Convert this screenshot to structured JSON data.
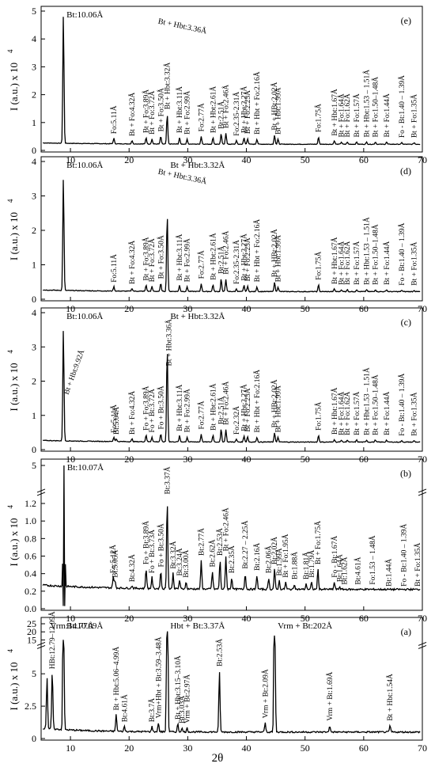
{
  "chart_data": [
    {
      "type": "line",
      "panel": "(e)",
      "xlabel": "",
      "ylabel": "I (a.u.) x 10^4",
      "xlim": [
        5,
        70
      ],
      "ylim": [
        0,
        5
      ],
      "yticks": [
        "0",
        "1",
        "2",
        "3",
        "4",
        "5"
      ],
      "xticks": [
        "10",
        "20",
        "30",
        "40",
        "50",
        "60",
        "70"
      ],
      "peaks": [
        {
          "x": 8.8,
          "y": 4.85,
          "label": "Bt:10.06Å"
        },
        {
          "x": 17.4,
          "y": 0.42,
          "label": "Fo:5.11Å"
        },
        {
          "x": 20.5,
          "y": 0.34,
          "label": "Bt + Fo:4.32Å"
        },
        {
          "x": 22.9,
          "y": 0.45,
          "label": "Bt + Fo:3.89Å"
        },
        {
          "x": 23.9,
          "y": 0.4,
          "label": "Bt + Fo:3.72Å"
        },
        {
          "x": 25.4,
          "y": 0.5,
          "label": "Bt + Fo:3.50Å"
        },
        {
          "x": 26.5,
          "y": 1.3,
          "label": "Bt + Hbt:3.32Å"
        },
        {
          "x": 28.6,
          "y": 0.45,
          "label": "Bt + Hbt:3.11Å"
        },
        {
          "x": 29.9,
          "y": 0.4,
          "label": "Bt + Fo:2.99Å"
        },
        {
          "x": 32.3,
          "y": 0.5,
          "label": "Fo:2.77Å"
        },
        {
          "x": 34.3,
          "y": 0.45,
          "label": "Bt + Hbt:2.61Å"
        },
        {
          "x": 35.7,
          "y": 0.6,
          "label": "Bt:2.51Å"
        },
        {
          "x": 36.5,
          "y": 0.62,
          "label": "Bt + Fo:2.46Å"
        },
        {
          "x": 38.3,
          "y": 0.35,
          "label": "Fo:2.35-2.31Å"
        },
        {
          "x": 39.6,
          "y": 0.45,
          "label": "Bt + Hbt:2.27Å"
        },
        {
          "x": 40.2,
          "y": 0.42,
          "label": "Bt + Fo:2.25Å"
        },
        {
          "x": 41.8,
          "y": 0.4,
          "label": "Bt + Hbt + Fo:2.16Å"
        },
        {
          "x": 44.8,
          "y": 0.55,
          "label": "Bt + HBt:2.02Å"
        },
        {
          "x": 45.4,
          "y": 0.4,
          "label": "Bt + Hbt:1.99Å"
        },
        {
          "x": 52.3,
          "y": 0.48,
          "label": "Fo:1.75Å"
        },
        {
          "x": 55.0,
          "y": 0.35,
          "label": "Bt + Hbt:1.67Å"
        },
        {
          "x": 56.2,
          "y": 0.3,
          "label": "Bt + Fo:1.64Å"
        },
        {
          "x": 57.2,
          "y": 0.3,
          "label": "Bt + Fo:1.62Å"
        },
        {
          "x": 58.8,
          "y": 0.3,
          "label": "Bt + Fo:1.57Å"
        },
        {
          "x": 60.5,
          "y": 0.3,
          "label": "Bt + Hbt:1.53 – 1.51Å"
        },
        {
          "x": 62.0,
          "y": 0.3,
          "label": "Bt + Fo:1.50–1.48Å"
        },
        {
          "x": 63.9,
          "y": 0.3,
          "label": "Bt + Fo:1.44Å"
        },
        {
          "x": 66.5,
          "y": 0.28,
          "label": "Fo - Bt:1.40 – 1.39Å"
        },
        {
          "x": 68.6,
          "y": 0.28,
          "label": "Bt + Fo:1.35Å"
        }
      ],
      "annotation": "Bt + Hbt:3.36Å"
    },
    {
      "type": "line",
      "panel": "(d)",
      "xlabel": "",
      "ylabel": "I (a.u.) x 10^4",
      "xlim": [
        5,
        70
      ],
      "ylim": [
        0,
        4
      ],
      "yticks": [
        "0",
        "1",
        "2",
        "3",
        "4"
      ],
      "xticks": [
        "10",
        "20",
        "30",
        "40",
        "50",
        "60",
        "70"
      ],
      "peaks": [
        {
          "x": 8.8,
          "y": 3.5,
          "label": "Bt:10.06Å"
        },
        {
          "x": 17.4,
          "y": 0.35,
          "label": "Fo:5.11Å"
        },
        {
          "x": 20.5,
          "y": 0.3,
          "label": "Bt + Fo:4.32Å"
        },
        {
          "x": 22.9,
          "y": 0.4,
          "label": "Bt + Fo:3.89Å"
        },
        {
          "x": 23.9,
          "y": 0.36,
          "label": "Bt + Fo:3.72Å"
        },
        {
          "x": 25.4,
          "y": 0.45,
          "label": "Bt + Fo:3.50Å"
        },
        {
          "x": 26.5,
          "y": 2.5,
          "label": "Bt + Hbt:3.32Å"
        },
        {
          "x": 28.6,
          "y": 0.4,
          "label": "Bt + Hbt:3.11Å"
        },
        {
          "x": 29.9,
          "y": 0.36,
          "label": "Bt + Fo:2.99Å"
        },
        {
          "x": 32.3,
          "y": 0.45,
          "label": "Fo:2.77Å"
        },
        {
          "x": 34.3,
          "y": 0.42,
          "label": "Bt + Hbt:2.61Å"
        },
        {
          "x": 35.7,
          "y": 0.6,
          "label": "Bt:2.51Å"
        },
        {
          "x": 36.5,
          "y": 0.58,
          "label": "Bt + Fo:2.46Å"
        },
        {
          "x": 38.3,
          "y": 0.3,
          "label": "Fo:2.35-2.31Å"
        },
        {
          "x": 39.6,
          "y": 0.4,
          "label": "Bt + Hbt:2.27Å"
        },
        {
          "x": 40.2,
          "y": 0.38,
          "label": "Bt + Fo:2.25Å"
        },
        {
          "x": 41.8,
          "y": 0.36,
          "label": "Bt + Hbt + Fo:2.16Å"
        },
        {
          "x": 44.8,
          "y": 0.5,
          "label": "Bt + HBt:2.02Å"
        },
        {
          "x": 45.4,
          "y": 0.36,
          "label": "Bt + Hbt:1.99Å"
        },
        {
          "x": 52.3,
          "y": 0.42,
          "label": "Fo:1.75Å"
        },
        {
          "x": 55.0,
          "y": 0.3,
          "label": "Bt + Hbt:1.67Å"
        },
        {
          "x": 56.2,
          "y": 0.28,
          "label": "Bt + Fo:1.64Å"
        },
        {
          "x": 57.2,
          "y": 0.28,
          "label": "Bt + Fo:1.62Å"
        },
        {
          "x": 58.8,
          "y": 0.28,
          "label": "Bt + Fo:1.57Å"
        },
        {
          "x": 60.5,
          "y": 0.28,
          "label": "Bt + Hbt:1.53 – 1.51Å"
        },
        {
          "x": 62.0,
          "y": 0.28,
          "label": "Bt + Fo:1.50–1.48Å"
        },
        {
          "x": 63.9,
          "y": 0.28,
          "label": "Bt + Fo:1.44Å"
        },
        {
          "x": 66.5,
          "y": 0.26,
          "label": "Fo - Bt:1.40 – 1.39Å"
        },
        {
          "x": 68.6,
          "y": 0.26,
          "label": "Bt + Fo:1.35Å"
        }
      ],
      "annotation": "Bt + Hbt:3.36Å"
    },
    {
      "type": "line",
      "panel": "(c)",
      "xlabel": "",
      "ylabel": "I (a.u.) x 10^4",
      "xlim": [
        5,
        70
      ],
      "ylim": [
        0,
        4
      ],
      "yticks": [
        "0",
        "1",
        "2",
        "3",
        "4"
      ],
      "xticks": [
        "10",
        "20",
        "30",
        "40",
        "50",
        "60",
        "70"
      ],
      "peaks": [
        {
          "x": 8.8,
          "y": 3.5,
          "label": "Bt:10.06Å"
        },
        {
          "x": 17.4,
          "y": 0.35,
          "label": "Fo:5.11Å"
        },
        {
          "x": 17.8,
          "y": 0.3,
          "label": "Bt:5.04Å"
        },
        {
          "x": 20.5,
          "y": 0.3,
          "label": "Bt + Fo:4.32Å"
        },
        {
          "x": 22.9,
          "y": 0.42,
          "label": "Fo + Fo:3.89Å"
        },
        {
          "x": 23.9,
          "y": 0.36,
          "label": "Fo + Bt:3.72Å"
        },
        {
          "x": 25.4,
          "y": 0.45,
          "label": "Fo + Bt:3.50Å"
        },
        {
          "x": 26.5,
          "y": 3.0,
          "label": "Bt + Hbt:3.32Å"
        },
        {
          "x": 28.6,
          "y": 0.4,
          "label": "Bt + Hbt:3.11Å"
        },
        {
          "x": 29.9,
          "y": 0.36,
          "label": "Bt + Fo:2.99Å"
        },
        {
          "x": 32.3,
          "y": 0.45,
          "label": "Fo:2.77Å"
        },
        {
          "x": 34.3,
          "y": 0.42,
          "label": "Bt + Hbt:2.61Å"
        },
        {
          "x": 35.7,
          "y": 0.6,
          "label": "Bt:2.51Å"
        },
        {
          "x": 36.5,
          "y": 0.58,
          "label": "Bt + Fo:2.46Å"
        },
        {
          "x": 38.3,
          "y": 0.3,
          "label": "Fo:2.32Å"
        },
        {
          "x": 39.6,
          "y": 0.4,
          "label": "Bt + Hbt:2.27Å"
        },
        {
          "x": 40.2,
          "y": 0.38,
          "label": "Bt + Fo:2.25Å"
        },
        {
          "x": 41.8,
          "y": 0.36,
          "label": "Bt + Hbt + Fo:2.16Å"
        },
        {
          "x": 44.8,
          "y": 0.5,
          "label": "Bt + HBt:2.02Å"
        },
        {
          "x": 45.4,
          "y": 0.36,
          "label": "Bt + Hbt:1.99Å"
        },
        {
          "x": 52.3,
          "y": 0.42,
          "label": "Fo:1.75Å"
        },
        {
          "x": 55.0,
          "y": 0.3,
          "label": "Bt + Hbt:1.67Å"
        },
        {
          "x": 56.2,
          "y": 0.28,
          "label": "Bt + Fo:1.64Å"
        },
        {
          "x": 57.2,
          "y": 0.28,
          "label": "Bt + Fo:1.62Å"
        },
        {
          "x": 58.8,
          "y": 0.28,
          "label": "Bt + Fo:1.57Å"
        },
        {
          "x": 60.5,
          "y": 0.28,
          "label": "Bt + Hbt:1.53 – 1.51Å"
        },
        {
          "x": 62.0,
          "y": 0.28,
          "label": "Bt + Fo:1.50–1.48Å"
        },
        {
          "x": 63.9,
          "y": 0.28,
          "label": "Bt + Fo:1.44Å"
        },
        {
          "x": 66.5,
          "y": 0.26,
          "label": "Fo - Bt:1.40 – 1.39Å"
        },
        {
          "x": 68.6,
          "y": 0.26,
          "label": "Bt + Fo:1.35Å"
        }
      ],
      "annotations": [
        "Bt + Hbt:3.36Å",
        "Bt + Hbt:9.92Å"
      ]
    },
    {
      "type": "line",
      "panel": "(b)",
      "xlabel": "",
      "ylabel": "I (a.u.) x 10^4",
      "xlim": [
        5,
        70
      ],
      "ylim": [
        0,
        5
      ],
      "axis_break": [
        1.3,
        4.6
      ],
      "yticks": [
        "0.0",
        "0.2",
        "0.4",
        "0.6",
        "0.8",
        "1.0",
        "1.2",
        "5"
      ],
      "xticks": [
        "10",
        "20",
        "30",
        "40",
        "50",
        "60",
        "70"
      ],
      "peaks": [
        {
          "x": 8.9,
          "y": 5.0,
          "label": "Bt:10.07Å"
        },
        {
          "x": 17.3,
          "y": 0.35,
          "label": "Fo:5.12Å"
        },
        {
          "x": 17.6,
          "y": 0.3,
          "label": "Bt:5.05Å"
        },
        {
          "x": 20.5,
          "y": 0.25,
          "label": "Bt:4.32Å"
        },
        {
          "x": 22.9,
          "y": 0.45,
          "label": "Fo + Bt:3.89Å"
        },
        {
          "x": 23.9,
          "y": 0.35,
          "label": "Fo + Bt:3.73Å"
        },
        {
          "x": 25.4,
          "y": 0.42,
          "label": "Fo + Bt:3.50Å"
        },
        {
          "x": 26.5,
          "y": 1.25,
          "label": "Bt:3.37Å"
        },
        {
          "x": 27.5,
          "y": 0.4,
          "label": "Bt:3.32Å"
        },
        {
          "x": 28.6,
          "y": 0.32,
          "label": "Bt:3.24Å"
        },
        {
          "x": 29.7,
          "y": 0.3,
          "label": "Bt:3.00Å"
        },
        {
          "x": 32.3,
          "y": 0.55,
          "label": "Bt:2.77Å"
        },
        {
          "x": 34.2,
          "y": 0.42,
          "label": "Bt:2.62Å"
        },
        {
          "x": 35.5,
          "y": 0.55,
          "label": "Bt:2.53Å"
        },
        {
          "x": 36.5,
          "y": 0.6,
          "label": "Bt + Fo:2.46Å"
        },
        {
          "x": 37.5,
          "y": 0.35,
          "label": "Bt:2.35Å"
        },
        {
          "x": 39.8,
          "y": 0.4,
          "label": "Bt:2.27 – 2.25Å"
        },
        {
          "x": 41.8,
          "y": 0.38,
          "label": "Bt:2.16Å"
        },
        {
          "x": 43.8,
          "y": 0.35,
          "label": "Bt:2.06Å"
        },
        {
          "x": 44.8,
          "y": 0.45,
          "label": "Bt:2.02Å"
        },
        {
          "x": 45.6,
          "y": 0.32,
          "label": "Bt:1.99Å"
        },
        {
          "x": 46.7,
          "y": 0.3,
          "label": "Bt + Fo:1.95Å"
        },
        {
          "x": 48.2,
          "y": 0.28,
          "label": "Bt:1.88Å"
        },
        {
          "x": 50.2,
          "y": 0.28,
          "label": "Bt:1.81Å"
        },
        {
          "x": 51.1,
          "y": 0.3,
          "label": "Bt:1.79Å"
        },
        {
          "x": 52.2,
          "y": 0.45,
          "label": "Bt + Fo:1.75Å"
        },
        {
          "x": 55.0,
          "y": 0.3,
          "label": "Fo - Bt:1.67Å"
        },
        {
          "x": 55.9,
          "y": 0.25,
          "label": "Bt:1.64Å"
        },
        {
          "x": 56.7,
          "y": 0.22,
          "label": "Bt:1.62Å"
        },
        {
          "x": 59.0,
          "y": 0.22,
          "label": "Bt:4.61Å"
        },
        {
          "x": 61.5,
          "y": 0.22,
          "label": "Fo:1.53 – 1.48Å"
        },
        {
          "x": 64.3,
          "y": 0.2,
          "label": "Bt:1.44Å"
        },
        {
          "x": 66.8,
          "y": 0.2,
          "label": "Fo - Bt:1.40 – 1.39Å"
        },
        {
          "x": 69.2,
          "y": 0.2,
          "label": "Bt + Fo:1.35Å"
        }
      ]
    },
    {
      "type": "line",
      "panel": "(a)",
      "xlabel": "2θ",
      "ylabel": "I (a.u.) x 10^4",
      "xlim": [
        5,
        70
      ],
      "ylim": [
        0,
        25
      ],
      "axis_break": [
        7,
        14
      ],
      "yticks": [
        "0",
        "2.5",
        "5",
        "15",
        "20",
        "25"
      ],
      "xticks": [
        "10",
        "20",
        "30",
        "40",
        "50",
        "60",
        "70"
      ],
      "peaks": [
        {
          "x": 6.0,
          "y": 4.5,
          "label": "Vrm:14.77Å"
        },
        {
          "x": 6.9,
          "y": 5.0,
          "label": "HBt:12.79–12.09Å"
        },
        {
          "x": 8.8,
          "y": 15.2,
          "label": "Bt:10.09Å"
        },
        {
          "x": 17.8,
          "y": 1.8,
          "label": "Bt + Hbt:5.06–4.99Å"
        },
        {
          "x": 19.2,
          "y": 0.9,
          "label": "Bt:4.61Å"
        },
        {
          "x": 23.9,
          "y": 0.9,
          "label": "Bt:3.7Å"
        },
        {
          "x": 25.0,
          "y": 1.2,
          "label": "Vrm+Hbt + Bt:3.59–3.48Å"
        },
        {
          "x": 26.5,
          "y": 22.0,
          "label": "Hbt + Bt:3.37Å"
        },
        {
          "x": 28.3,
          "y": 1.1,
          "label": "Bt + Hbt:3.15–3.10Å"
        },
        {
          "x": 29.0,
          "y": 0.8,
          "label": "Bt:3.03Å"
        },
        {
          "x": 29.9,
          "y": 0.8,
          "label": "Vrm + Bt:2.97Å"
        },
        {
          "x": 35.4,
          "y": 5.2,
          "label": "Bt:2.53Å"
        },
        {
          "x": 43.2,
          "y": 1.2,
          "label": "Vrm + Bt:2.09Å"
        },
        {
          "x": 44.8,
          "y": 18.0,
          "label": "Vrm + Bt:202Å"
        },
        {
          "x": 54.2,
          "y": 1.0,
          "label": "Vrm + Bt:1.69Å"
        },
        {
          "x": 64.5,
          "y": 1.0,
          "label": "Bt + Hbt:1.54Å"
        }
      ]
    }
  ],
  "panels": {
    "e_label": "(e)",
    "d_label": "(d)",
    "c_label": "(c)",
    "b_label": "(b)",
    "a_label": "(a)"
  },
  "axes": {
    "ylabel": "I (a.u.) x 10",
    "ylabel_exp": "4",
    "xlabel": "2θ",
    "xticks": [
      "10",
      "20",
      "30",
      "40",
      "50",
      "60",
      "70"
    ]
  }
}
